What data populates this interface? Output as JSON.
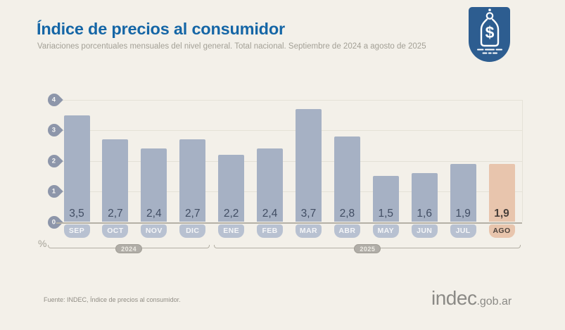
{
  "header": {
    "title": "Índice de precios al consumidor",
    "subtitle": "Variaciones porcentuales mensuales del nivel general. Total nacional. Septiembre de 2024 a agosto de 2025",
    "badge_icon": "price-tag-dollar-icon"
  },
  "colors": {
    "accent_blue": "#1566a6",
    "badge_bg": "#2d5d90",
    "bar": "#a6b1c4",
    "bar_highlight": "#e8c5ad",
    "month_pill": "#b8c1d1",
    "background": "#f3f0e9"
  },
  "chart_data": {
    "type": "bar",
    "title": "Índice de precios al consumidor",
    "categories": [
      "SEP",
      "OCT",
      "NOV",
      "DIC",
      "ENE",
      "FEB",
      "MAR",
      "ABR",
      "MAY",
      "JUN",
      "JUL",
      "AGO"
    ],
    "values": [
      3.5,
      2.7,
      2.4,
      2.7,
      2.2,
      2.4,
      3.7,
      2.8,
      1.5,
      1.6,
      1.9,
      1.9
    ],
    "value_labels": [
      "3,5",
      "2,7",
      "2,4",
      "2,7",
      "2,2",
      "2,4",
      "3,7",
      "2,8",
      "1,5",
      "1,6",
      "1,9",
      "1,9"
    ],
    "highlight_index": 11,
    "xlabel": "",
    "ylabel": "%",
    "ylim": [
      0,
      4
    ],
    "y_ticks": [
      0,
      1,
      2,
      3,
      4
    ],
    "grid": true,
    "legend": "none",
    "year_groups": [
      {
        "label": "2024",
        "start_index": 0,
        "end_index": 3
      },
      {
        "label": "2025",
        "start_index": 4,
        "end_index": 11
      }
    ]
  },
  "footer": {
    "source": "Fuente: INDEC, Índice de precios al consumidor.",
    "logo_main": "indec",
    "logo_suffix": ".gob.ar"
  }
}
